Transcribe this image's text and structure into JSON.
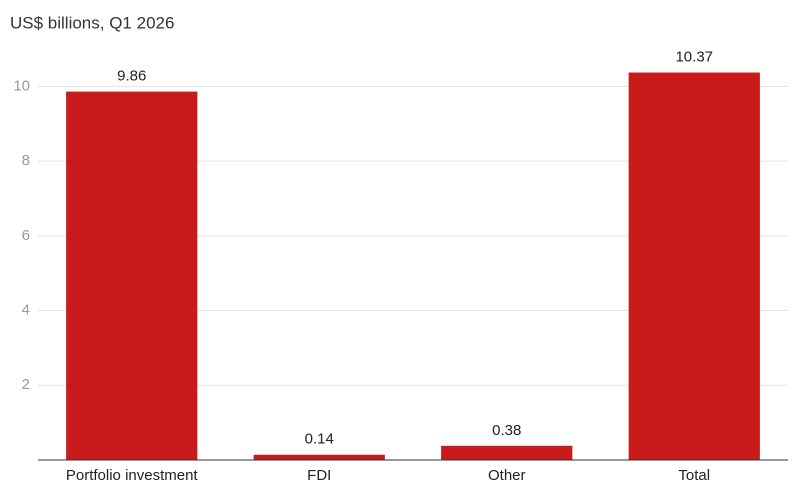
{
  "chart_data": {
    "type": "bar",
    "subtitle": "US$ billions, Q1 2026",
    "categories": [
      "Portfolio investment",
      "FDI",
      "Other",
      "Total"
    ],
    "values": [
      9.86,
      0.14,
      0.38,
      10.37
    ],
    "color": "#c81c1c",
    "ylim": [
      0,
      11
    ],
    "yticks": [
      2,
      4,
      6,
      8,
      10
    ],
    "grid": true
  }
}
